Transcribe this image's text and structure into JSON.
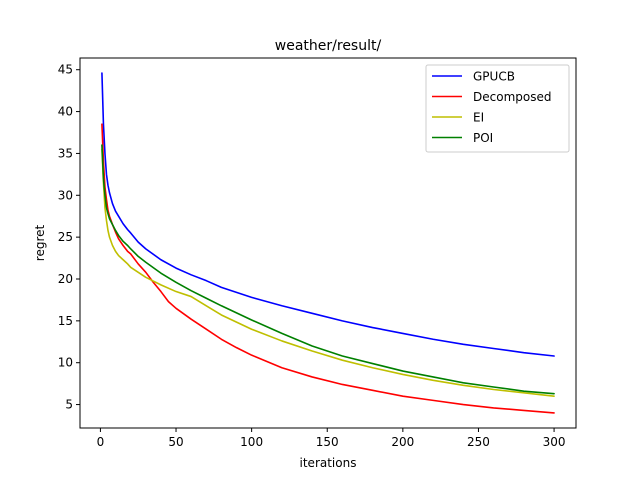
{
  "chart_data": {
    "type": "line",
    "title": "weather/result/",
    "xlabel": "iterations",
    "ylabel": "regret",
    "xlim": [
      -13.5,
      314.5
    ],
    "ylim": [
      2.2,
      46.4
    ],
    "xticks": [
      0,
      50,
      100,
      150,
      200,
      250,
      300
    ],
    "yticks": [
      5,
      10,
      15,
      20,
      25,
      30,
      35,
      40,
      45
    ],
    "grid": false,
    "legend_position": "top-right",
    "series": [
      {
        "name": "GPUCB",
        "color": "#0000ff",
        "x": [
          1,
          2,
          3,
          4,
          5,
          6,
          8,
          10,
          12,
          15,
          18,
          20,
          25,
          30,
          40,
          50,
          60,
          70,
          80,
          100,
          120,
          140,
          160,
          180,
          200,
          220,
          240,
          260,
          280,
          300
        ],
        "y": [
          44.6,
          38.5,
          35.0,
          32.5,
          31.2,
          30.3,
          29.0,
          28.1,
          27.5,
          26.6,
          25.9,
          25.5,
          24.4,
          23.6,
          22.3,
          21.3,
          20.5,
          19.8,
          19.0,
          17.8,
          16.8,
          15.9,
          15.0,
          14.2,
          13.5,
          12.8,
          12.2,
          11.7,
          11.2,
          10.8
        ]
      },
      {
        "name": "Decomposed",
        "color": "#ff0000",
        "x": [
          1,
          2,
          3,
          4,
          5,
          6,
          8,
          10,
          12,
          15,
          18,
          20,
          25,
          30,
          35,
          40,
          45,
          50,
          60,
          70,
          80,
          90,
          100,
          120,
          140,
          160,
          180,
          200,
          220,
          240,
          260,
          280,
          300
        ],
        "y": [
          38.5,
          34.0,
          31.0,
          29.5,
          28.2,
          27.5,
          26.5,
          25.6,
          24.8,
          24.0,
          23.3,
          23.0,
          21.8,
          20.8,
          19.6,
          18.5,
          17.3,
          16.5,
          15.2,
          14.0,
          12.8,
          11.8,
          10.9,
          9.4,
          8.3,
          7.4,
          6.7,
          6.0,
          5.5,
          5.0,
          4.6,
          4.3,
          4.0
        ]
      },
      {
        "name": "EI",
        "color": "#bfbf00",
        "x": [
          1,
          2,
          3,
          4,
          5,
          6,
          8,
          10,
          12,
          15,
          18,
          20,
          25,
          30,
          40,
          50,
          60,
          70,
          80,
          100,
          120,
          140,
          160,
          180,
          200,
          220,
          240,
          260,
          280,
          300
        ],
        "y": [
          35.5,
          31.5,
          28.5,
          27.0,
          25.8,
          25.0,
          24.0,
          23.3,
          22.8,
          22.3,
          21.8,
          21.4,
          20.8,
          20.2,
          19.3,
          18.5,
          17.9,
          16.8,
          15.7,
          14.0,
          12.6,
          11.4,
          10.3,
          9.4,
          8.6,
          7.9,
          7.3,
          6.8,
          6.4,
          6.0
        ]
      },
      {
        "name": "POI",
        "color": "#008000",
        "x": [
          1,
          2,
          3,
          4,
          5,
          6,
          8,
          10,
          12,
          15,
          18,
          20,
          25,
          30,
          40,
          50,
          60,
          70,
          80,
          100,
          120,
          140,
          160,
          180,
          200,
          220,
          240,
          260,
          280,
          300
        ],
        "y": [
          36.0,
          32.0,
          30.0,
          28.5,
          27.8,
          27.2,
          26.5,
          25.8,
          25.2,
          24.5,
          24.0,
          23.6,
          22.7,
          22.0,
          20.7,
          19.6,
          18.6,
          17.7,
          16.8,
          15.1,
          13.5,
          12.0,
          10.8,
          9.9,
          9.0,
          8.3,
          7.6,
          7.1,
          6.6,
          6.3
        ]
      }
    ]
  }
}
